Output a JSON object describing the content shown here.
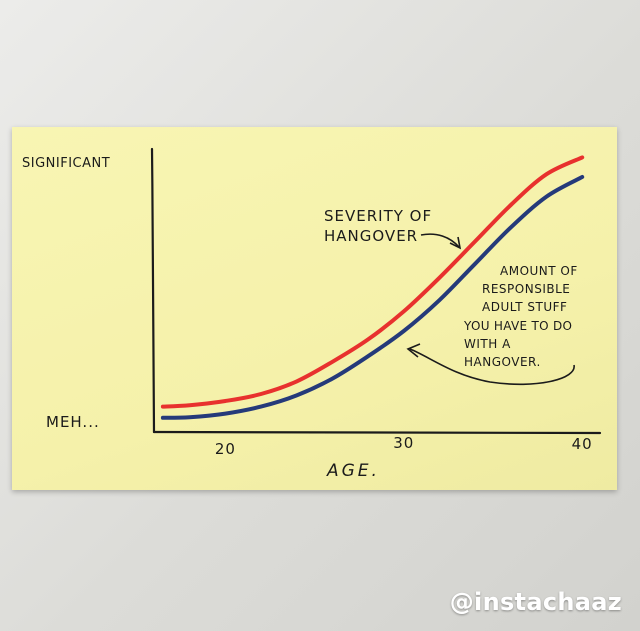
{
  "watermark": "@instachaaz",
  "chart_data": {
    "type": "line",
    "title": "",
    "xlabel": "AGE.",
    "ylabel": "",
    "x_ticks": [
      20,
      30,
      40
    ],
    "xlim": [
      16,
      41
    ],
    "y_ticks": [
      "MEH...",
      "SIGNIFICANT"
    ],
    "ylim": [
      0,
      100
    ],
    "grid": false,
    "legend": "none",
    "annotations": [
      {
        "text": [
          "SEVERITY OF",
          "HANGOVER"
        ],
        "target": "severity"
      },
      {
        "text": [
          "AMOUNT OF",
          "RESPONSIBLE",
          "ADULT STUFF",
          "YOU HAVE TO DO",
          "WITH A",
          "HANGOVER."
        ],
        "target": "responsibility"
      }
    ],
    "series": [
      {
        "key": "severity",
        "color": "#e8312e",
        "x": [
          16.5,
          18,
          20,
          22,
          24,
          26,
          28,
          30,
          32,
          34,
          36,
          38,
          40
        ],
        "y": [
          8,
          8.5,
          10,
          12.5,
          17,
          24,
          32,
          42,
          54,
          67,
          80,
          91,
          97
        ]
      },
      {
        "key": "responsibility",
        "color": "#253a7a",
        "x": [
          16.5,
          18,
          20,
          22,
          24,
          26,
          28,
          30,
          32,
          34,
          36,
          38,
          40
        ],
        "y": [
          4,
          4.2,
          5.5,
          8,
          12,
          18,
          26,
          35,
          46,
          59,
          72,
          83,
          90
        ]
      }
    ]
  }
}
